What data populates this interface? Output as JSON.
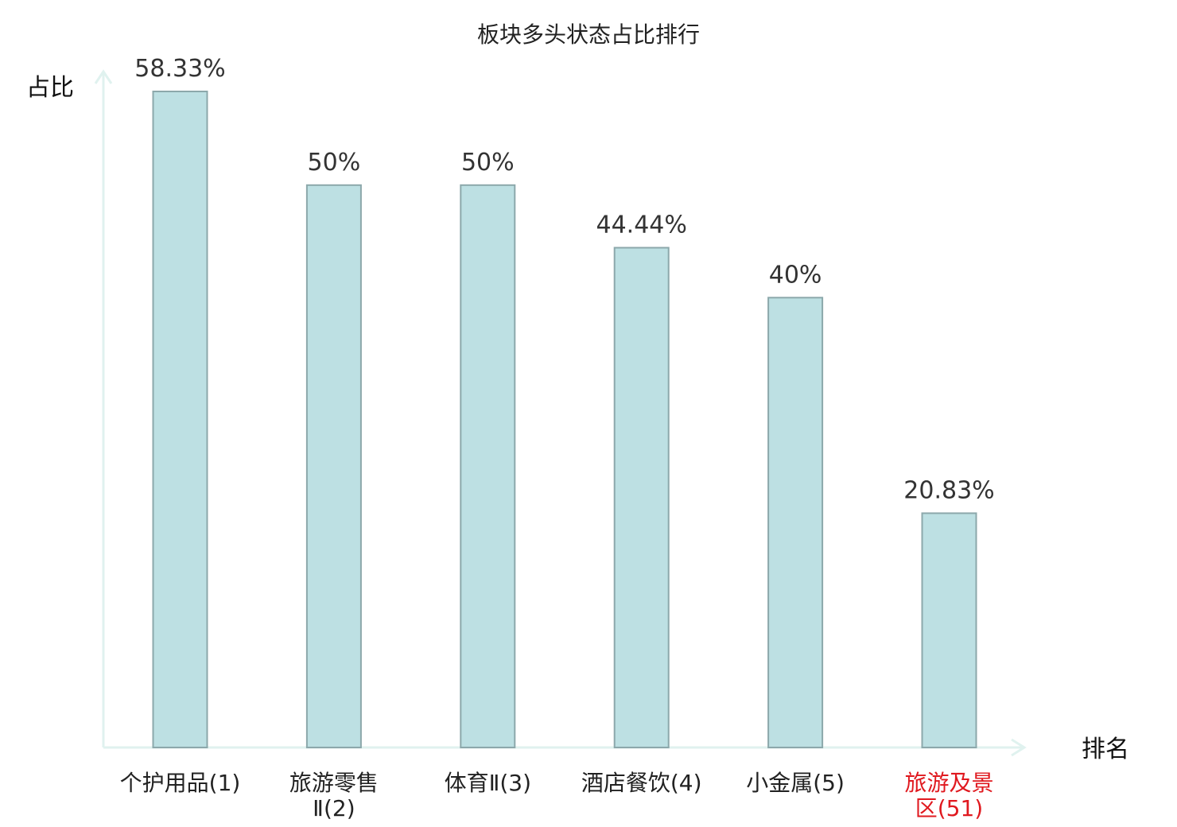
{
  "chart_data": {
    "type": "bar",
    "title": "板块多头状态占比排行",
    "ylabel": "占比",
    "xlabel": "排名",
    "ylim": [
      0,
      65
    ],
    "grid": false,
    "legend": "none",
    "categories": [
      {
        "name": "个护用品",
        "rank": "(1)",
        "label_lines": [
          "个护用品(1)"
        ],
        "highlight": false
      },
      {
        "name": "旅游零售Ⅱ",
        "rank": "(2)",
        "label_lines": [
          "旅游零售",
          "Ⅱ(2)"
        ],
        "highlight": false
      },
      {
        "name": "体育Ⅱ",
        "rank": "(3)",
        "label_lines": [
          "体育Ⅱ(3)"
        ],
        "highlight": false
      },
      {
        "name": "酒店餐饮",
        "rank": "(4)",
        "label_lines": [
          "酒店餐饮(4)"
        ],
        "highlight": false
      },
      {
        "name": "小金属",
        "rank": "(5)",
        "label_lines": [
          "小金属(5)"
        ],
        "highlight": false
      },
      {
        "name": "旅游及景区",
        "rank": "(51)",
        "label_lines": [
          "旅游及景",
          "区(51)"
        ],
        "highlight": true
      }
    ],
    "values": [
      58.33,
      50,
      50,
      44.44,
      40,
      20.83
    ],
    "value_labels": [
      "58.33%",
      "50%",
      "50%",
      "44.44%",
      "40%",
      "20.83%"
    ]
  },
  "colors": {
    "bar_fill": "#bde0e3",
    "bar_stroke": "#8ca8ab",
    "axis": "#e0f2ef",
    "text": "#222222",
    "value_text": "#333333",
    "highlight_text": "#e0191f"
  }
}
